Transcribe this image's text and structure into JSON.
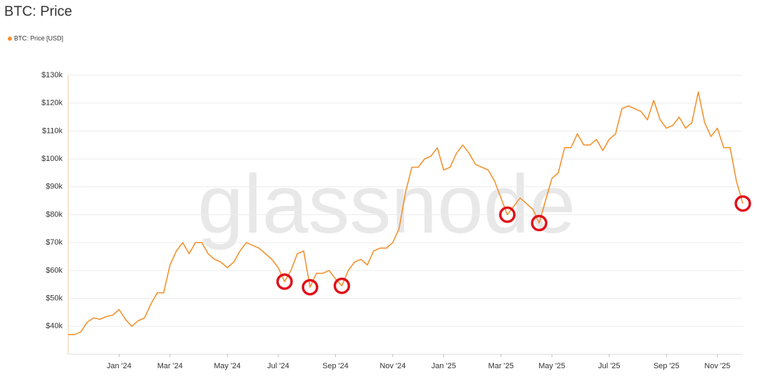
{
  "chart_data": {
    "type": "line",
    "title": "BTC: Price",
    "watermark": "glassnode",
    "categories": [
      null,
      null,
      null,
      null,
      null,
      null,
      null,
      null,
      "Jan '24",
      null,
      null,
      null,
      null,
      null,
      null,
      null,
      "Mar '24",
      null,
      null,
      null,
      null,
      null,
      null,
      null,
      null,
      "May '24",
      null,
      null,
      null,
      null,
      null,
      null,
      null,
      "Jul '24",
      null,
      null,
      null,
      null,
      null,
      null,
      null,
      null,
      "Sep '24",
      null,
      null,
      null,
      null,
      null,
      null,
      null,
      null,
      "Nov '24",
      null,
      null,
      null,
      null,
      null,
      null,
      null,
      "Jan '25",
      null,
      null,
      null,
      null,
      null,
      null,
      null,
      null,
      "Mar '25",
      null,
      null,
      null,
      null,
      null,
      null,
      null,
      "May '25",
      null,
      null,
      null,
      null,
      null,
      null,
      null,
      null,
      "Jul '25",
      null,
      null,
      null,
      null,
      null,
      null,
      null,
      null,
      "Sep '25",
      null,
      null,
      null,
      null,
      null,
      null,
      null,
      "Nov '25",
      null,
      null,
      null,
      null
    ],
    "series": [
      {
        "name": "BTC: Price [USD]",
        "color": "#f39230",
        "values": [
          37000,
          37000,
          38000,
          41500,
          43000,
          42500,
          43500,
          44000,
          46000,
          42500,
          40000,
          42000,
          43000,
          48000,
          52000,
          52000,
          62000,
          67000,
          70000,
          66000,
          70000,
          70000,
          66000,
          64000,
          63000,
          61000,
          63000,
          67000,
          70000,
          69000,
          68000,
          66000,
          64000,
          61000,
          56000,
          60000,
          66000,
          67000,
          54000,
          59000,
          59000,
          60000,
          57000,
          54500,
          60000,
          63000,
          64000,
          62000,
          67000,
          68000,
          68000,
          70000,
          75000,
          88000,
          97000,
          97000,
          100000,
          101000,
          104000,
          96000,
          97000,
          102000,
          105000,
          102000,
          98000,
          97000,
          96000,
          92000,
          86000,
          80000,
          83000,
          86000,
          84000,
          82000,
          77000,
          85000,
          93000,
          95000,
          104000,
          104000,
          109000,
          105000,
          105000,
          107000,
          103000,
          107000,
          109000,
          118000,
          119000,
          118000,
          117000,
          114000,
          121000,
          114000,
          111000,
          112000,
          115000,
          111000,
          113000,
          124000,
          113000,
          108000,
          111000,
          104000,
          104000,
          92000,
          84000
        ]
      }
    ],
    "highlights": [
      34,
      38,
      43,
      69,
      74,
      106
    ],
    "highlight_color": "#e0101a",
    "ylim": [
      30000,
      130000
    ],
    "yticks": [
      {
        "value": 40000,
        "label": "$40k"
      },
      {
        "value": 50000,
        "label": "$50k"
      },
      {
        "value": 60000,
        "label": "$60k"
      },
      {
        "value": 70000,
        "label": "$70k"
      },
      {
        "value": 80000,
        "label": "$80k"
      },
      {
        "value": 90000,
        "label": "$90k"
      },
      {
        "value": 100000,
        "label": "$100k"
      },
      {
        "value": 110000,
        "label": "$110k"
      },
      {
        "value": 120000,
        "label": "$120k"
      },
      {
        "value": 130000,
        "label": "$130k"
      }
    ],
    "grid": true,
    "legend": "top-left"
  }
}
